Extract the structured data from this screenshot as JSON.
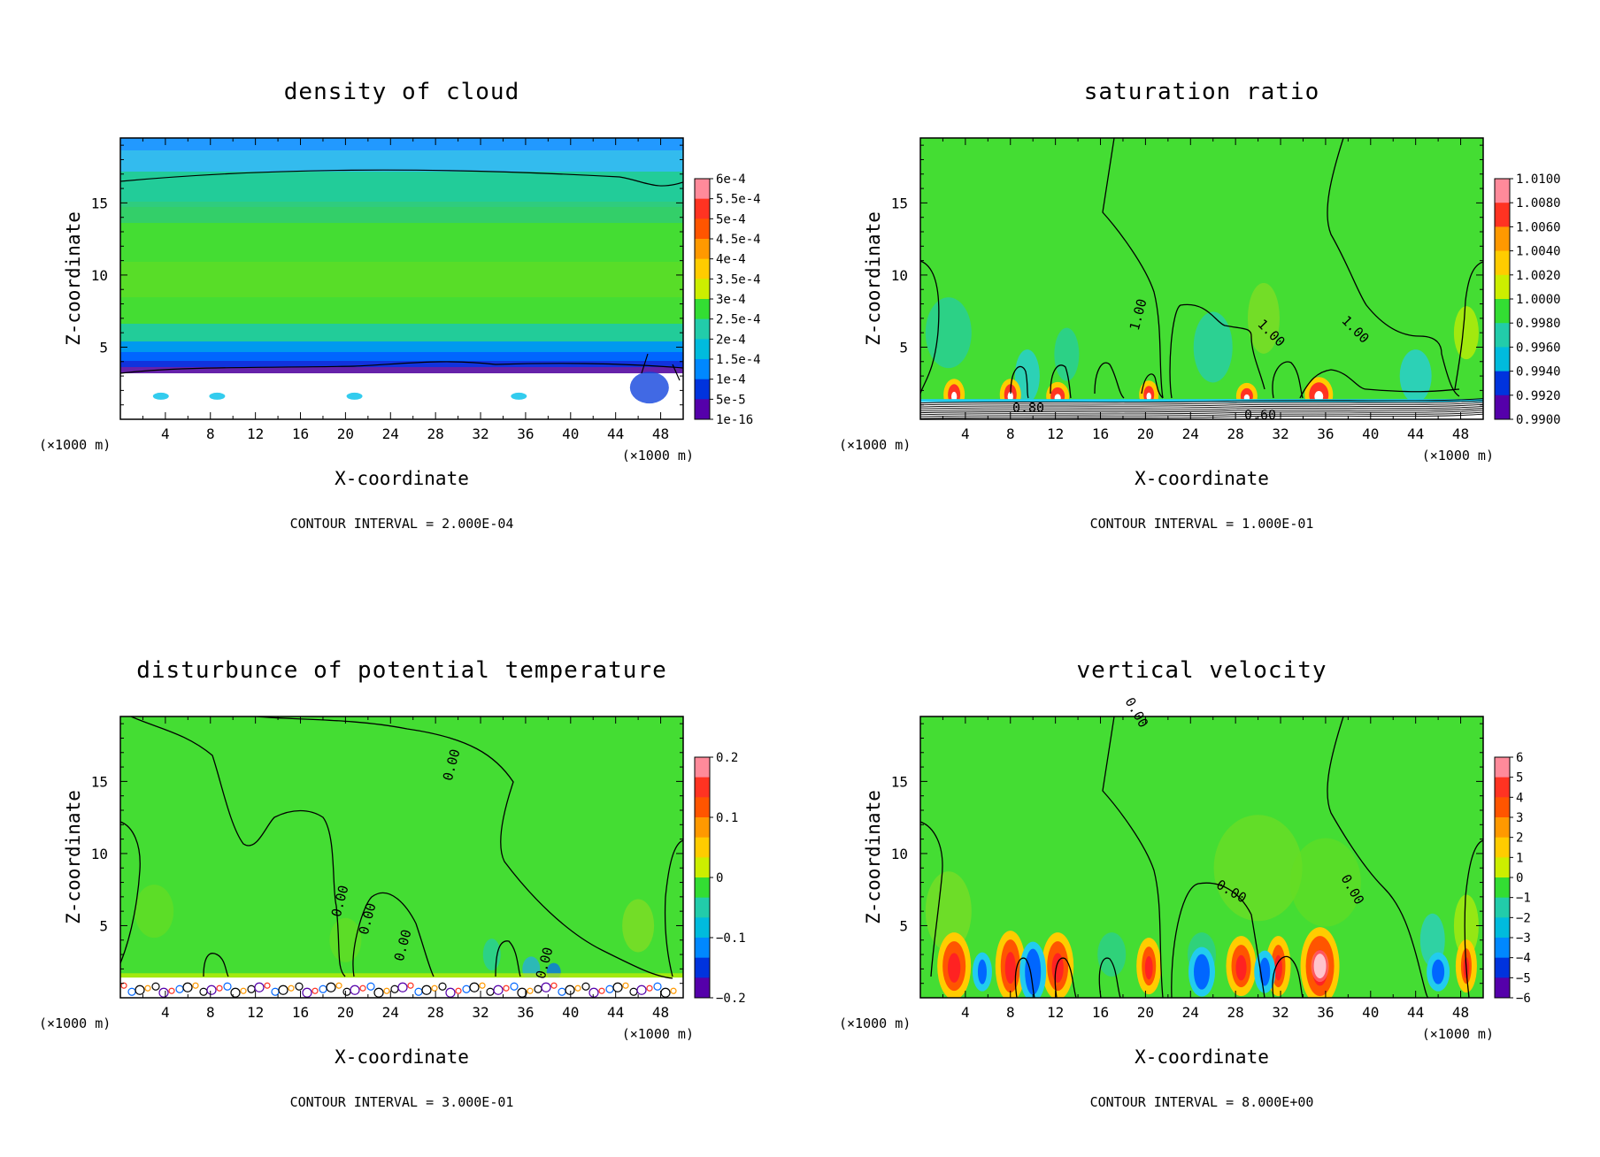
{
  "chart_data": [
    {
      "type": "heatmap",
      "title": "density of cloud",
      "xlabel": "X-coordinate",
      "ylabel": "Z-coordinate",
      "x_unit": "(×1000 m)",
      "xticks": [
        "4",
        "8",
        "12",
        "16",
        "20",
        "24",
        "28",
        "32",
        "36",
        "40",
        "44",
        "48"
      ],
      "yticks": [
        "5",
        "10",
        "15"
      ],
      "xlim": [
        0,
        50
      ],
      "ylim": [
        0,
        19.5
      ],
      "colorbar_labels": [
        "6e-4",
        "5.5e-4",
        "5e-4",
        "4.5e-4",
        "4e-4",
        "3.5e-4",
        "3e-4",
        "2.5e-4",
        "2e-4",
        "1.5e-4",
        "1e-4",
        "5e-5",
        "1e-16"
      ],
      "contour_labels": [],
      "footer": "CONTOUR INTERVAL = 2.000E-04"
    },
    {
      "type": "heatmap",
      "title": "saturation ratio",
      "xlabel": "X-coordinate",
      "ylabel": "Z-coordinate",
      "x_unit": "(×1000 m)",
      "xticks": [
        "4",
        "8",
        "12",
        "16",
        "20",
        "24",
        "28",
        "32",
        "36",
        "40",
        "44",
        "48"
      ],
      "yticks": [
        "5",
        "10",
        "15"
      ],
      "xlim": [
        0,
        50
      ],
      "ylim": [
        0,
        19.5
      ],
      "colorbar_labels": [
        "1.0100",
        "1.0080",
        "1.0060",
        "1.0040",
        "1.0020",
        "1.0000",
        "0.9980",
        "0.9960",
        "0.9940",
        "0.9920",
        "0.9900"
      ],
      "contour_labels": [
        "1.00",
        "1.00",
        "1.00",
        "0.80",
        "0.60"
      ],
      "footer": "CONTOUR INTERVAL = 1.000E-01"
    },
    {
      "type": "heatmap",
      "title": "disturbunce of potential temperature",
      "xlabel": "X-coordinate",
      "ylabel": "Z-coordinate",
      "x_unit": "(×1000 m)",
      "xticks": [
        "4",
        "8",
        "12",
        "16",
        "20",
        "24",
        "28",
        "32",
        "36",
        "40",
        "44",
        "48"
      ],
      "yticks": [
        "5",
        "10",
        "15"
      ],
      "xlim": [
        0,
        50
      ],
      "ylim": [
        0,
        19.5
      ],
      "colorbar_labels": [
        "0.2",
        "0.1",
        "0",
        "−0.1",
        "−0.2"
      ],
      "contour_labels": [
        "0.00",
        "0.00",
        "0.00",
        "0.00",
        "0.00"
      ],
      "footer": "CONTOUR INTERVAL = 3.000E-01"
    },
    {
      "type": "heatmap",
      "title": "vertical velocity",
      "xlabel": "X-coordinate",
      "ylabel": "Z-coordinate",
      "x_unit": "(×1000 m)",
      "xticks": [
        "4",
        "8",
        "12",
        "16",
        "20",
        "24",
        "28",
        "32",
        "36",
        "40",
        "44",
        "48"
      ],
      "yticks": [
        "5",
        "10",
        "15"
      ],
      "xlim": [
        0,
        50
      ],
      "ylim": [
        0,
        19.5
      ],
      "colorbar_labels": [
        "6",
        "5",
        "4",
        "3",
        "2",
        "1",
        "0",
        "−1",
        "−2",
        "−3",
        "−4",
        "−5",
        "−6"
      ],
      "contour_labels": [
        "0.00",
        "0.00",
        "0.00"
      ],
      "footer": "CONTOUR INTERVAL = 8.000E+00"
    }
  ],
  "colors": {
    "background_green": "#33dd33",
    "axis": "#000000"
  }
}
